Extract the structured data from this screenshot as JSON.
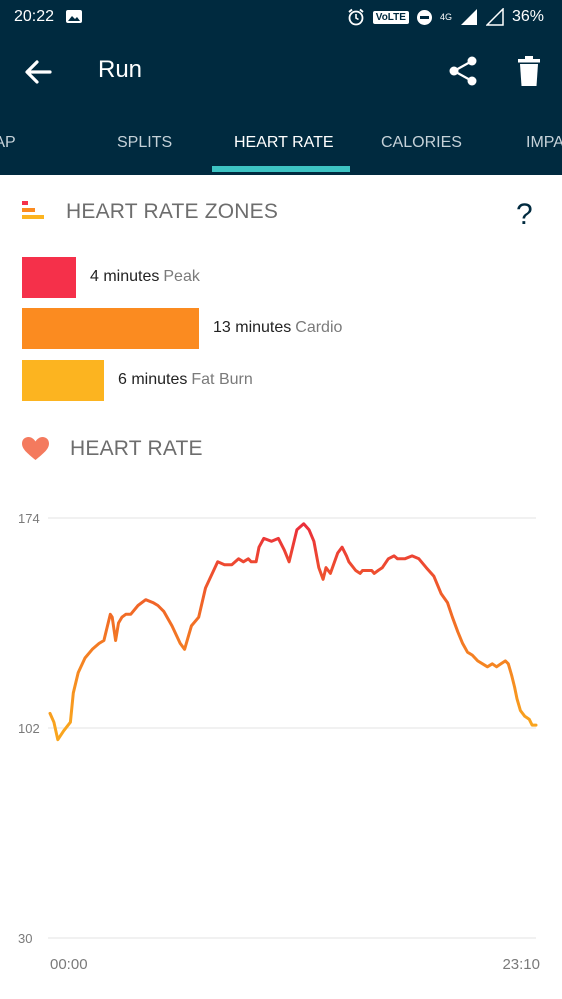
{
  "status_bar": {
    "time": "20:22",
    "volte": "VoLTE",
    "network": "4G",
    "battery": "36%"
  },
  "app_bar": {
    "title": "Run"
  },
  "tabs": [
    {
      "label": "MAP"
    },
    {
      "label": "SPLITS"
    },
    {
      "label": "HEART RATE"
    },
    {
      "label": "CALORIES"
    },
    {
      "label": "IMPACT"
    }
  ],
  "zones_section": {
    "title": "HEART RATE ZONES",
    "help": "?",
    "zones": [
      {
        "minutes": "4 minutes",
        "name": "Peak",
        "value": 4,
        "color": "#f5304a"
      },
      {
        "minutes": "13 minutes",
        "name": "Cardio",
        "value": 13,
        "color": "#fb8b20"
      },
      {
        "minutes": "6 minutes",
        "name": "Fat Burn",
        "value": 6,
        "color": "#fcb420"
      }
    ]
  },
  "heart_rate_section": {
    "title": "HEART RATE"
  },
  "chart_data": {
    "type": "line",
    "y_ticks": [
      "174",
      "102",
      "30"
    ],
    "ylim": [
      30,
      174
    ],
    "x_labels": [
      "00:00",
      "23:10"
    ],
    "xlim": [
      0,
      1
    ],
    "grid": true,
    "colors": {
      "low": "#f9a51e",
      "mid": "#f16a26",
      "high": "#ea2a3c"
    },
    "series": [
      {
        "x": [
          0,
          0.008,
          0.016,
          0.028,
          0.042,
          0.048,
          0.058,
          0.072,
          0.087,
          0.101,
          0.111,
          0.124,
          0.128,
          0.135,
          0.141,
          0.148,
          0.156,
          0.166,
          0.181,
          0.197,
          0.212,
          0.222,
          0.234,
          0.251,
          0.268,
          0.277,
          0.291,
          0.306,
          0.32,
          0.345,
          0.359,
          0.374,
          0.388,
          0.398,
          0.408,
          0.414,
          0.424,
          0.43,
          0.44,
          0.456,
          0.47,
          0.482,
          0.492,
          0.508,
          0.522,
          0.533,
          0.543,
          0.553,
          0.562,
          0.568,
          0.577,
          0.592,
          0.601,
          0.61,
          0.615,
          0.629,
          0.638,
          0.643,
          0.652,
          0.662,
          0.667,
          0.675,
          0.684,
          0.696,
          0.708,
          0.715,
          0.73,
          0.745,
          0.759,
          0.774,
          0.79,
          0.805,
          0.818,
          0.828,
          0.839,
          0.849,
          0.859,
          0.869,
          0.88,
          0.89,
          0.9,
          0.91,
          0.919,
          0.928,
          0.937,
          0.943,
          0.95,
          0.956,
          0.961,
          0.968,
          0.977,
          0.986,
          0.992,
          1.0
        ],
        "values": [
          107,
          104,
          98,
          101,
          104,
          114,
          121,
          126,
          129,
          131,
          132,
          141,
          140,
          132,
          138,
          140,
          141,
          141,
          144,
          146,
          145,
          144,
          142,
          137,
          131,
          129,
          137,
          140,
          150,
          159,
          158,
          158,
          160,
          159,
          160,
          159,
          159,
          164,
          167,
          166,
          167,
          163,
          159,
          170,
          172,
          170,
          166,
          157,
          153,
          157,
          155,
          162,
          164,
          161,
          159,
          156,
          155,
          156,
          156,
          156,
          155,
          156,
          157,
          160,
          161,
          160,
          160,
          161,
          160,
          157,
          154,
          148,
          145,
          140,
          135,
          131,
          128,
          127,
          125,
          124,
          123,
          124,
          123,
          124,
          125,
          124,
          120,
          116,
          112,
          108,
          106,
          105,
          103,
          103
        ]
      }
    ]
  }
}
